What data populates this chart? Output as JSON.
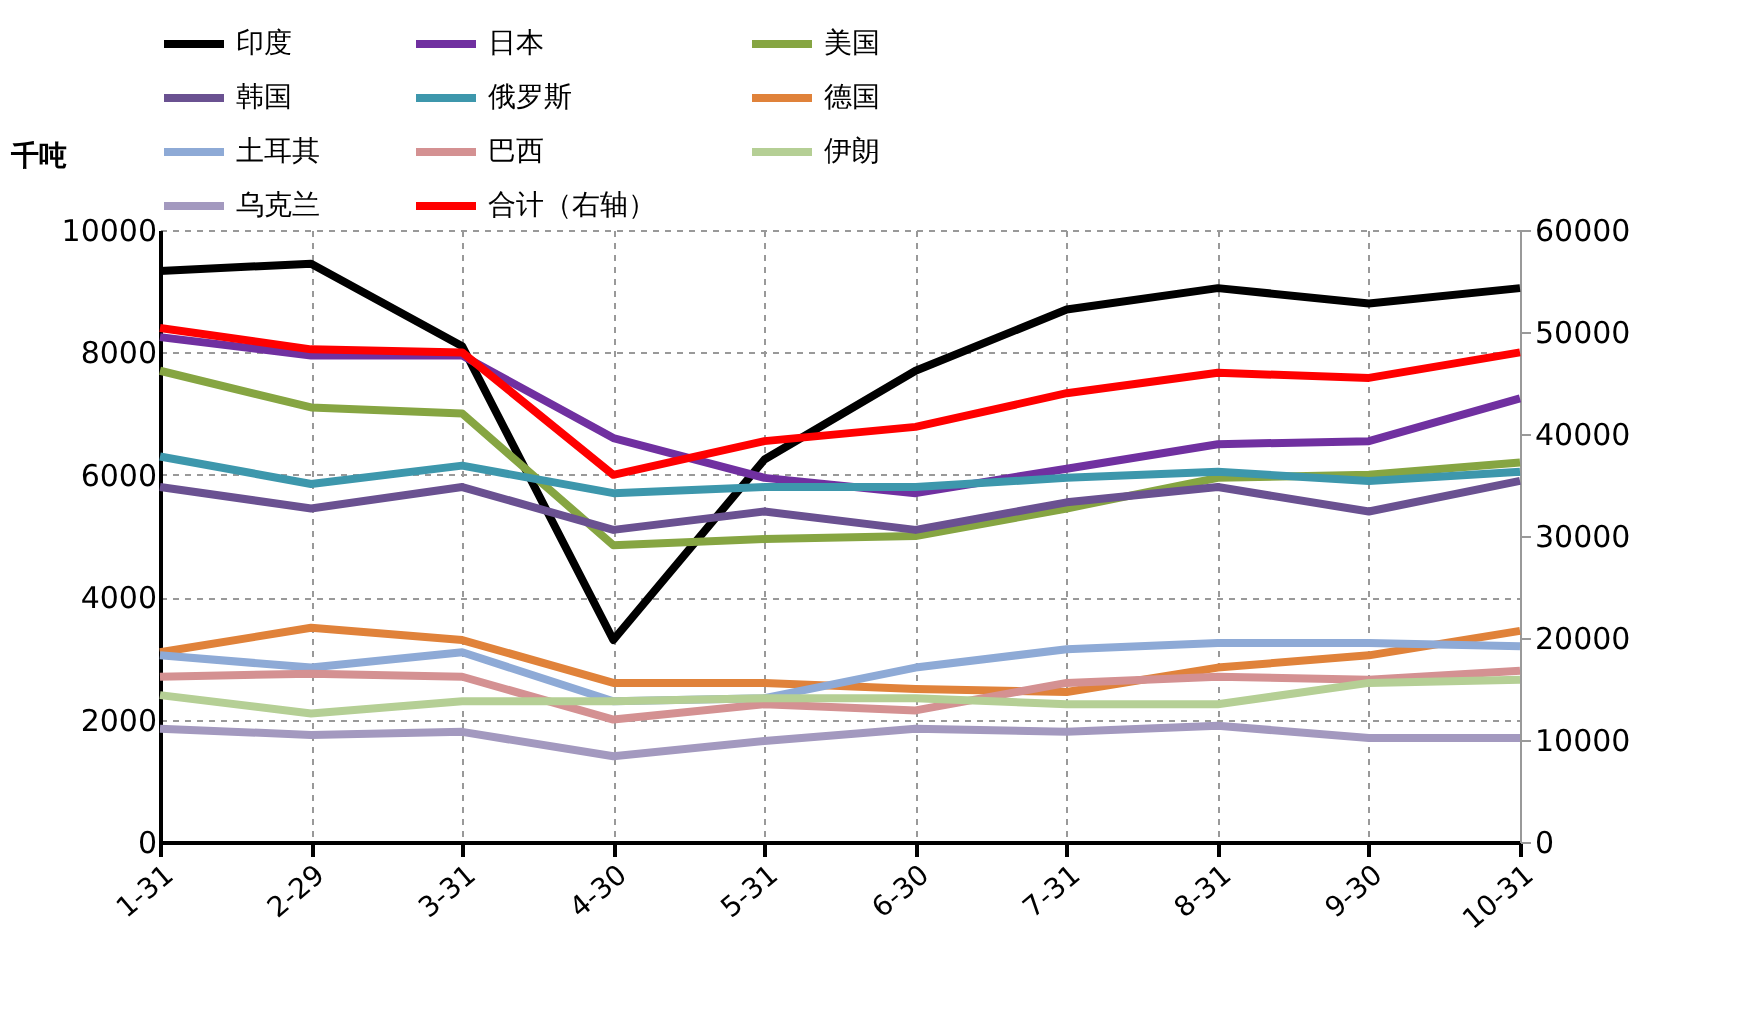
{
  "chart_data": {
    "type": "line",
    "ylabel": "千吨",
    "categories": [
      "1-31",
      "2-29",
      "3-31",
      "4-30",
      "5-31",
      "6-30",
      "7-31",
      "8-31",
      "9-30",
      "10-31"
    ],
    "ylim": [
      0,
      10000
    ],
    "yticks": [
      0,
      2000,
      4000,
      6000,
      8000,
      10000
    ],
    "y2lim": [
      0,
      60000
    ],
    "y2ticks": [
      0,
      10000,
      20000,
      30000,
      40000,
      50000,
      60000
    ],
    "grid": true,
    "legend": "top",
    "series": [
      {
        "name": "印度",
        "color": "#000000",
        "values": [
          9330,
          9450,
          8100,
          3300,
          6250,
          7700,
          8700,
          9050,
          8800,
          9050
        ]
      },
      {
        "name": "日本",
        "color": "#7030a0",
        "values": [
          8250,
          7950,
          7950,
          6600,
          5950,
          5700,
          6100,
          6500,
          6550,
          7250
        ]
      },
      {
        "name": "美国",
        "color": "#86a542",
        "values": [
          7700,
          7100,
          7000,
          4850,
          4950,
          5000,
          5450,
          5950,
          6000,
          6200
        ]
      },
      {
        "name": "韩国",
        "color": "#6a5191",
        "values": [
          5800,
          5450,
          5800,
          5100,
          5400,
          5100,
          5550,
          5800,
          5400,
          5900
        ]
      },
      {
        "name": "俄罗斯",
        "color": "#3d97ac",
        "values": [
          6300,
          5850,
          6150,
          5700,
          5800,
          5800,
          5950,
          6050,
          5900,
          6050
        ]
      },
      {
        "name": "德国",
        "color": "#e0823a",
        "values": [
          3100,
          3500,
          3300,
          2600,
          2600,
          2500,
          2450,
          2850,
          3050,
          3450
        ]
      },
      {
        "name": "土耳其",
        "color": "#8eaad6",
        "values": [
          3050,
          2850,
          3100,
          2300,
          2350,
          2850,
          3150,
          3250,
          3250,
          3200
        ]
      },
      {
        "name": "巴西",
        "color": "#d49192",
        "values": [
          2700,
          2750,
          2700,
          2000,
          2250,
          2150,
          2600,
          2700,
          2650,
          2800
        ]
      },
      {
        "name": "伊朗",
        "color": "#b5cf95",
        "values": [
          2400,
          2100,
          2300,
          2300,
          2350,
          2350,
          2250,
          2250,
          2600,
          2650
        ]
      },
      {
        "name": "乌克兰",
        "color": "#a399bf",
        "values": [
          1850,
          1750,
          1800,
          1400,
          1650,
          1850,
          1800,
          1900,
          1700,
          1700
        ]
      },
      {
        "name": "合计（右轴）",
        "color": "#ff0000",
        "axis": "y2",
        "values": [
          50400,
          48300,
          48000,
          36000,
          39300,
          40700,
          44000,
          46000,
          45500,
          48000
        ]
      }
    ]
  }
}
